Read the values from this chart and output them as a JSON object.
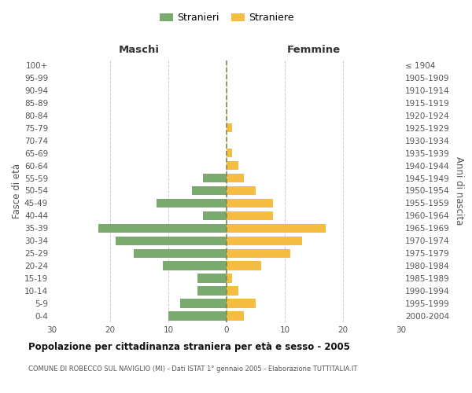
{
  "age_groups": [
    "0-4",
    "5-9",
    "10-14",
    "15-19",
    "20-24",
    "25-29",
    "30-34",
    "35-39",
    "40-44",
    "45-49",
    "50-54",
    "55-59",
    "60-64",
    "65-69",
    "70-74",
    "75-79",
    "80-84",
    "85-89",
    "90-94",
    "95-99",
    "100+"
  ],
  "birth_years": [
    "2000-2004",
    "1995-1999",
    "1990-1994",
    "1985-1989",
    "1980-1984",
    "1975-1979",
    "1970-1974",
    "1965-1969",
    "1960-1964",
    "1955-1959",
    "1950-1954",
    "1945-1949",
    "1940-1944",
    "1935-1939",
    "1930-1934",
    "1925-1929",
    "1920-1924",
    "1915-1919",
    "1910-1914",
    "1905-1909",
    "≤ 1904"
  ],
  "males": [
    10,
    8,
    5,
    5,
    11,
    16,
    19,
    22,
    4,
    12,
    6,
    4,
    0,
    0,
    0,
    0,
    0,
    0,
    0,
    0,
    0
  ],
  "females": [
    3,
    5,
    2,
    1,
    6,
    11,
    13,
    17,
    8,
    8,
    5,
    3,
    2,
    1,
    0,
    1,
    0,
    0,
    0,
    0,
    0
  ],
  "male_color": "#7aaa6e",
  "female_color": "#f5bc42",
  "grid_color": "#cccccc",
  "dashed_line_color": "#888844",
  "background_color": "#ffffff",
  "title": "Popolazione per cittadinanza straniera per età e sesso - 2005",
  "subtitle": "COMUNE DI ROBECCO SUL NAVIGLIO (MI) - Dati ISTAT 1° gennaio 2005 - Elaborazione TUTTITALIA.IT",
  "xlabel_left": "Maschi",
  "xlabel_right": "Femmine",
  "ylabel_left": "Fasce di età",
  "ylabel_right": "Anni di nascita",
  "legend_male": "Stranieri",
  "legend_female": "Straniere",
  "xlim": 30
}
